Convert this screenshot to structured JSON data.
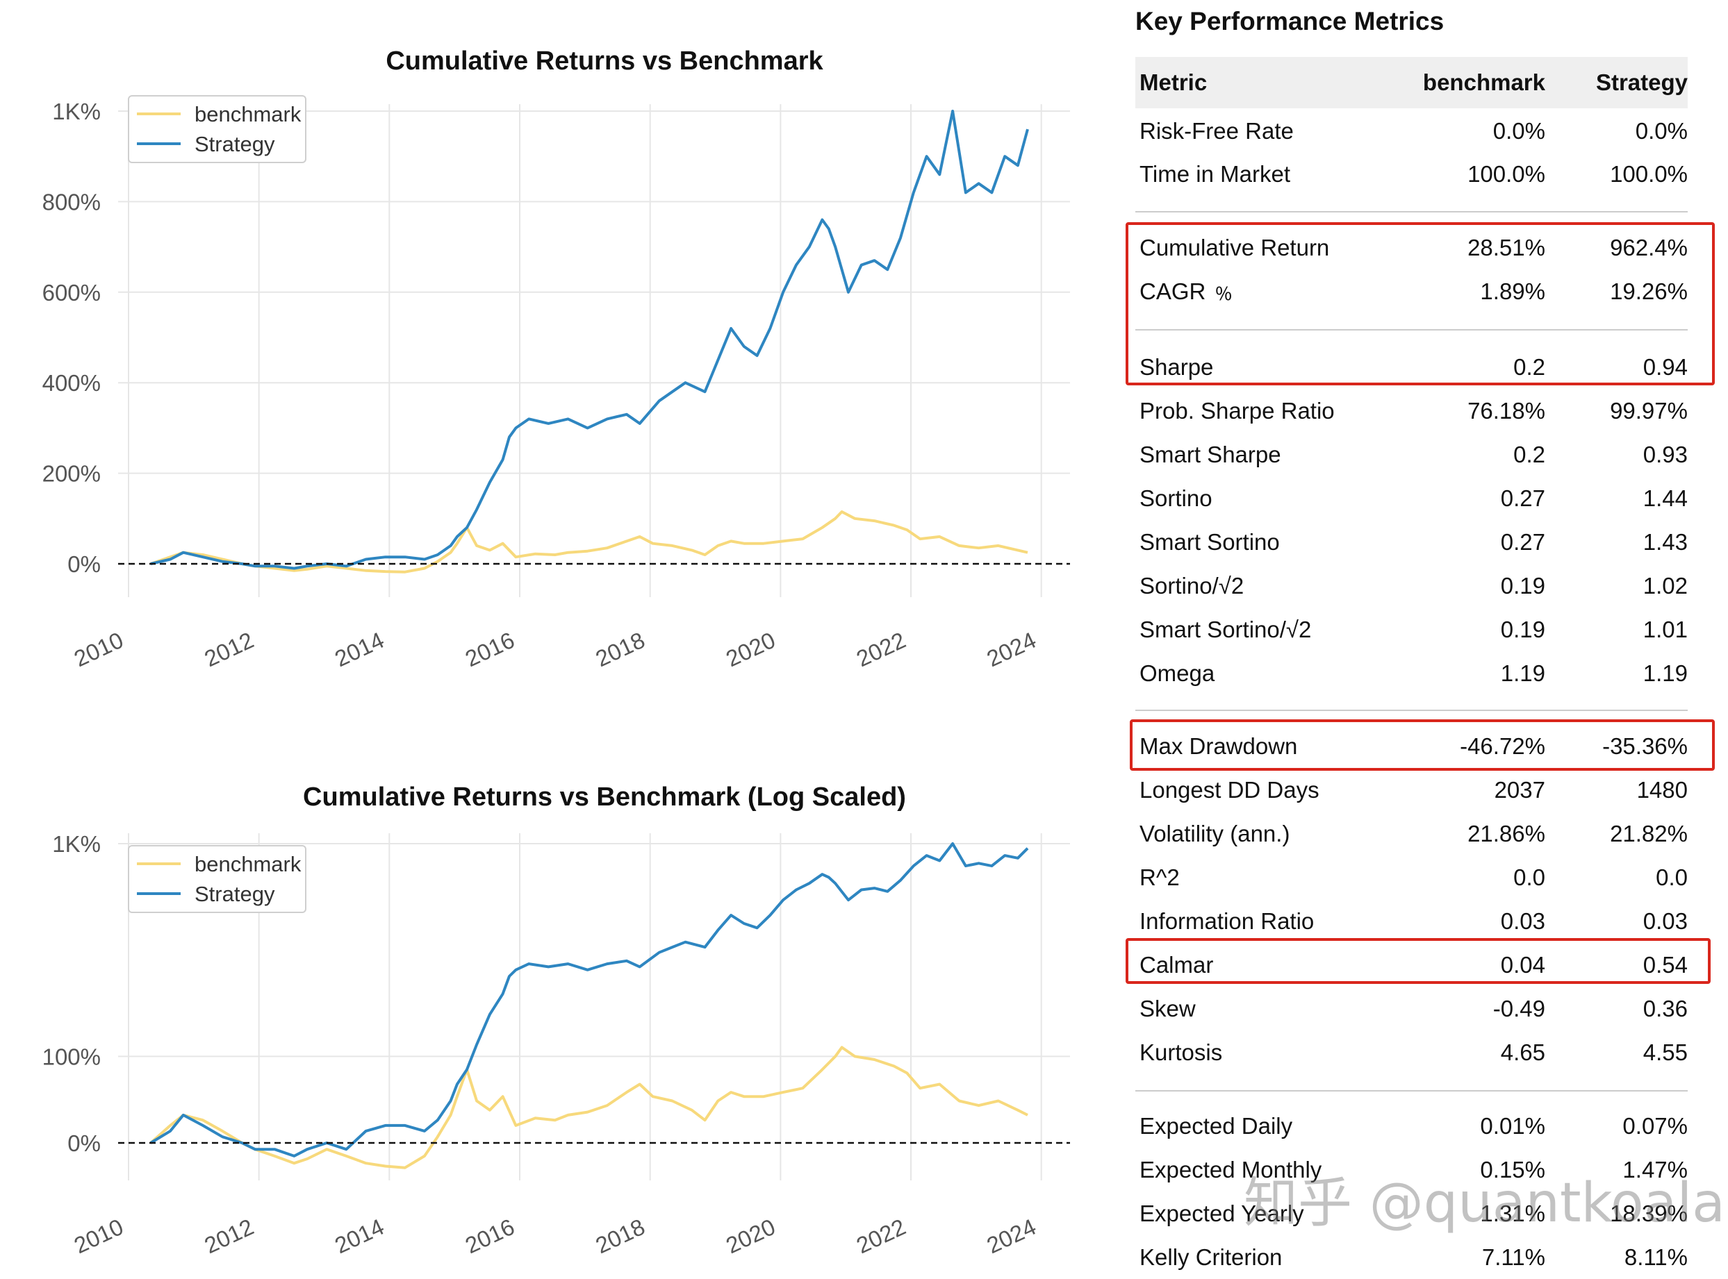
{
  "chart_data": [
    {
      "type": "line",
      "title": "Cumulative Returns vs Benchmark",
      "yscale": "linear",
      "ylim": [
        -60,
        1010
      ],
      "y_ticks": [
        0,
        200,
        400,
        600,
        800,
        1000
      ],
      "y_tick_labels": [
        "0%",
        "200%",
        "400%",
        "600%",
        "800%",
        "1K%"
      ],
      "x_ticks": [
        "2010",
        "2012",
        "2014",
        "2016",
        "2018",
        "2020",
        "2022",
        "2024"
      ],
      "xlim": [
        2010.0,
        2024.6
      ],
      "grid": true,
      "legend_position": "top-left",
      "baseline": 0,
      "series": [
        {
          "name": "benchmark",
          "color": "#f7d97c",
          "x": [
            2010.5,
            2010.8,
            2011.0,
            2011.3,
            2011.6,
            2011.9,
            2012.1,
            2012.4,
            2012.7,
            2012.9,
            2013.2,
            2013.5,
            2013.8,
            2014.1,
            2014.4,
            2014.7,
            2014.9,
            2015.1,
            2015.2,
            2015.35,
            2015.5,
            2015.7,
            2015.9,
            2016.1,
            2016.4,
            2016.7,
            2016.9,
            2017.2,
            2017.5,
            2017.8,
            2018.0,
            2018.2,
            2018.5,
            2018.8,
            2019.0,
            2019.2,
            2019.4,
            2019.6,
            2019.9,
            2020.2,
            2020.5,
            2020.8,
            2021.0,
            2021.1,
            2021.3,
            2021.6,
            2021.9,
            2022.1,
            2022.3,
            2022.6,
            2022.9,
            2023.2,
            2023.5,
            2023.8,
            2023.95
          ],
          "y": [
            0,
            15,
            25,
            20,
            10,
            0,
            -5,
            -10,
            -15,
            -12,
            -5,
            -10,
            -15,
            -17,
            -18,
            -10,
            5,
            25,
            45,
            80,
            40,
            30,
            45,
            15,
            22,
            20,
            25,
            28,
            35,
            50,
            60,
            45,
            40,
            30,
            20,
            40,
            50,
            45,
            45,
            50,
            55,
            80,
            100,
            115,
            100,
            95,
            85,
            75,
            55,
            60,
            40,
            35,
            40,
            30,
            25
          ]
        },
        {
          "name": "Strategy",
          "color": "#2e86c1",
          "x": [
            2010.5,
            2010.8,
            2011.0,
            2011.3,
            2011.6,
            2011.9,
            2012.1,
            2012.4,
            2012.7,
            2012.9,
            2013.2,
            2013.5,
            2013.8,
            2014.1,
            2014.4,
            2014.7,
            2014.9,
            2015.1,
            2015.2,
            2015.35,
            2015.5,
            2015.7,
            2015.9,
            2016.0,
            2016.1,
            2016.3,
            2016.6,
            2016.9,
            2017.2,
            2017.5,
            2017.8,
            2018.0,
            2018.3,
            2018.5,
            2018.7,
            2019.0,
            2019.2,
            2019.4,
            2019.6,
            2019.8,
            2020.0,
            2020.2,
            2020.4,
            2020.6,
            2020.8,
            2020.9,
            2021.0,
            2021.2,
            2021.4,
            2021.6,
            2021.8,
            2022.0,
            2022.2,
            2022.4,
            2022.6,
            2022.8,
            2023.0,
            2023.2,
            2023.4,
            2023.6,
            2023.8,
            2023.95
          ],
          "y": [
            0,
            10,
            25,
            15,
            5,
            0,
            -5,
            -5,
            -10,
            -5,
            0,
            -5,
            10,
            15,
            15,
            10,
            20,
            40,
            60,
            80,
            120,
            180,
            230,
            280,
            300,
            320,
            310,
            320,
            300,
            320,
            330,
            310,
            360,
            380,
            400,
            380,
            450,
            520,
            480,
            460,
            520,
            600,
            660,
            700,
            760,
            740,
            700,
            600,
            660,
            670,
            650,
            720,
            820,
            900,
            860,
            1000,
            820,
            840,
            820,
            900,
            880,
            960
          ]
        }
      ]
    },
    {
      "type": "line",
      "title": "Cumulative Returns vs Benchmark (Log Scaled)",
      "yscale": "log",
      "ylim": [
        -70,
        1020
      ],
      "y_ticks": [
        0,
        100,
        1000
      ],
      "y_tick_labels": [
        "0%",
        "100%",
        "1K%"
      ],
      "x_ticks": [
        "2010",
        "2012",
        "2014",
        "2016",
        "2018",
        "2020",
        "2022",
        "2024"
      ],
      "xlim": [
        2010.0,
        2024.6
      ],
      "grid": true,
      "legend_position": "top-left",
      "baseline": 0,
      "series": [
        {
          "name": "benchmark",
          "color": "#f7d97c",
          "x": [
            2010.5,
            2010.8,
            2011.0,
            2011.3,
            2011.6,
            2011.9,
            2012.1,
            2012.4,
            2012.7,
            2012.9,
            2013.2,
            2013.5,
            2013.8,
            2014.1,
            2014.4,
            2014.7,
            2014.9,
            2015.1,
            2015.2,
            2015.35,
            2015.5,
            2015.7,
            2015.9,
            2016.1,
            2016.4,
            2016.7,
            2016.9,
            2017.2,
            2017.5,
            2017.8,
            2018.0,
            2018.2,
            2018.5,
            2018.8,
            2019.0,
            2019.2,
            2019.4,
            2019.6,
            2019.9,
            2020.2,
            2020.5,
            2020.8,
            2021.0,
            2021.1,
            2021.3,
            2021.6,
            2021.9,
            2022.1,
            2022.3,
            2022.6,
            2022.9,
            2023.2,
            2023.5,
            2023.8,
            2023.95
          ],
          "y": [
            0,
            15,
            25,
            20,
            10,
            0,
            -5,
            -10,
            -15,
            -12,
            -5,
            -10,
            -15,
            -17,
            -18,
            -10,
            5,
            25,
            45,
            80,
            40,
            30,
            45,
            15,
            22,
            20,
            25,
            28,
            35,
            50,
            60,
            45,
            40,
            30,
            20,
            40,
            50,
            45,
            45,
            50,
            55,
            80,
            100,
            115,
            100,
            95,
            85,
            75,
            55,
            60,
            40,
            35,
            40,
            30,
            25
          ]
        },
        {
          "name": "Strategy",
          "color": "#2e86c1",
          "x": [
            2010.5,
            2010.8,
            2011.0,
            2011.3,
            2011.6,
            2011.9,
            2012.1,
            2012.4,
            2012.7,
            2012.9,
            2013.2,
            2013.5,
            2013.8,
            2014.1,
            2014.4,
            2014.7,
            2014.9,
            2015.1,
            2015.2,
            2015.35,
            2015.5,
            2015.7,
            2015.9,
            2016.0,
            2016.1,
            2016.3,
            2016.6,
            2016.9,
            2017.2,
            2017.5,
            2017.8,
            2018.0,
            2018.3,
            2018.5,
            2018.7,
            2019.0,
            2019.2,
            2019.4,
            2019.6,
            2019.8,
            2020.0,
            2020.2,
            2020.4,
            2020.6,
            2020.8,
            2020.9,
            2021.0,
            2021.2,
            2021.4,
            2021.6,
            2021.8,
            2022.0,
            2022.2,
            2022.4,
            2022.6,
            2022.8,
            2023.0,
            2023.2,
            2023.4,
            2023.6,
            2023.8,
            2023.95
          ],
          "y": [
            0,
            10,
            25,
            15,
            5,
            0,
            -5,
            -5,
            -10,
            -5,
            0,
            -5,
            10,
            15,
            15,
            10,
            20,
            40,
            60,
            80,
            120,
            180,
            230,
            280,
            300,
            320,
            310,
            320,
            300,
            320,
            330,
            310,
            360,
            380,
            400,
            380,
            450,
            520,
            480,
            460,
            520,
            600,
            660,
            700,
            760,
            740,
            700,
            600,
            660,
            670,
            650,
            720,
            820,
            900,
            860,
            1000,
            820,
            840,
            820,
            900,
            880,
            960
          ]
        }
      ]
    }
  ],
  "metrics": {
    "title": "Key Performance Metrics",
    "header": {
      "metric": "Metric",
      "benchmark": "benchmark",
      "strategy": "Strategy"
    },
    "rows": [
      {
        "name": "Risk-Free Rate",
        "benchmark": "0.0%",
        "strategy": "0.0%"
      },
      {
        "name": "Time in Market",
        "benchmark": "100.0%",
        "strategy": "100.0%"
      },
      {
        "name": "Cumulative Return",
        "benchmark": "28.51%",
        "strategy": "962.4%"
      },
      {
        "name": "CAGR ﹪",
        "benchmark": "1.89%",
        "strategy": "19.26%"
      },
      {
        "name": "Sharpe",
        "benchmark": "0.2",
        "strategy": "0.94"
      },
      {
        "name": "Prob. Sharpe Ratio",
        "benchmark": "76.18%",
        "strategy": "99.97%"
      },
      {
        "name": "Smart Sharpe",
        "benchmark": "0.2",
        "strategy": "0.93"
      },
      {
        "name": "Sortino",
        "benchmark": "0.27",
        "strategy": "1.44"
      },
      {
        "name": "Smart Sortino",
        "benchmark": "0.27",
        "strategy": "1.43"
      },
      {
        "name": "Sortino/√2",
        "benchmark": "0.19",
        "strategy": "1.02"
      },
      {
        "name": "Smart Sortino/√2",
        "benchmark": "0.19",
        "strategy": "1.01"
      },
      {
        "name": "Omega",
        "benchmark": "1.19",
        "strategy": "1.19"
      },
      {
        "name": "Max Drawdown",
        "benchmark": "-46.72%",
        "strategy": "-35.36%"
      },
      {
        "name": "Longest DD Days",
        "benchmark": "2037",
        "strategy": "1480"
      },
      {
        "name": "Volatility (ann.)",
        "benchmark": "21.86%",
        "strategy": "21.82%"
      },
      {
        "name": "R^2",
        "benchmark": "0.0",
        "strategy": "0.0"
      },
      {
        "name": "Information Ratio",
        "benchmark": "0.03",
        "strategy": "0.03"
      },
      {
        "name": "Calmar",
        "benchmark": "0.04",
        "strategy": "0.54"
      },
      {
        "name": "Skew",
        "benchmark": "-0.49",
        "strategy": "0.36"
      },
      {
        "name": "Kurtosis",
        "benchmark": "4.65",
        "strategy": "4.55"
      },
      {
        "name": "Expected Daily",
        "benchmark": "0.01%",
        "strategy": "0.07%"
      },
      {
        "name": "Expected Monthly",
        "benchmark": "0.15%",
        "strategy": "1.47%"
      },
      {
        "name": "Expected Yearly",
        "benchmark": "1.31%",
        "strategy": "18.39%"
      },
      {
        "name": "Kelly Criterion",
        "benchmark": "7.11%",
        "strategy": "8.11%"
      }
    ],
    "highlight_color": "#d9261c"
  },
  "watermark": "知乎 @quantkoala"
}
